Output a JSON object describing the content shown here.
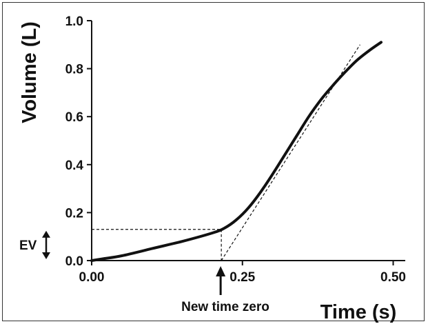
{
  "chart_data": {
    "type": "line",
    "title": "",
    "xlabel": "Time (s)",
    "ylabel": "Volume (L)",
    "xlim": [
      0.0,
      0.52
    ],
    "ylim": [
      0.0,
      1.0
    ],
    "x_ticks": [
      "0.00",
      "0.25",
      "0.50"
    ],
    "y_ticks": [
      "0.0",
      "0.2",
      "0.4",
      "0.6",
      "0.8",
      "1.0"
    ],
    "grid": false,
    "legend": "none",
    "series": [
      {
        "x": [
          0.0,
          0.02,
          0.05,
          0.1,
          0.15,
          0.2,
          0.22,
          0.24,
          0.26,
          0.28,
          0.3,
          0.32,
          0.34,
          0.36,
          0.38,
          0.4,
          0.42,
          0.44,
          0.46,
          0.48
        ],
        "y": [
          0.0,
          0.008,
          0.02,
          0.05,
          0.08,
          0.115,
          0.135,
          0.17,
          0.22,
          0.285,
          0.36,
          0.44,
          0.52,
          0.6,
          0.67,
          0.73,
          0.785,
          0.835,
          0.875,
          0.91
        ],
        "color": "#111111",
        "style": "solid"
      }
    ],
    "tangent_line": {
      "x": [
        0.215,
        0.445
      ],
      "y": [
        0.0,
        0.9
      ],
      "style": "dashed"
    },
    "ev_reference": {
      "y": 0.13,
      "x_end": 0.215,
      "style": "dashed"
    },
    "new_time_zero": {
      "x": 0.215
    },
    "annotations": {
      "ev_label": "EV",
      "new_time_zero_label": "New time zero"
    }
  }
}
